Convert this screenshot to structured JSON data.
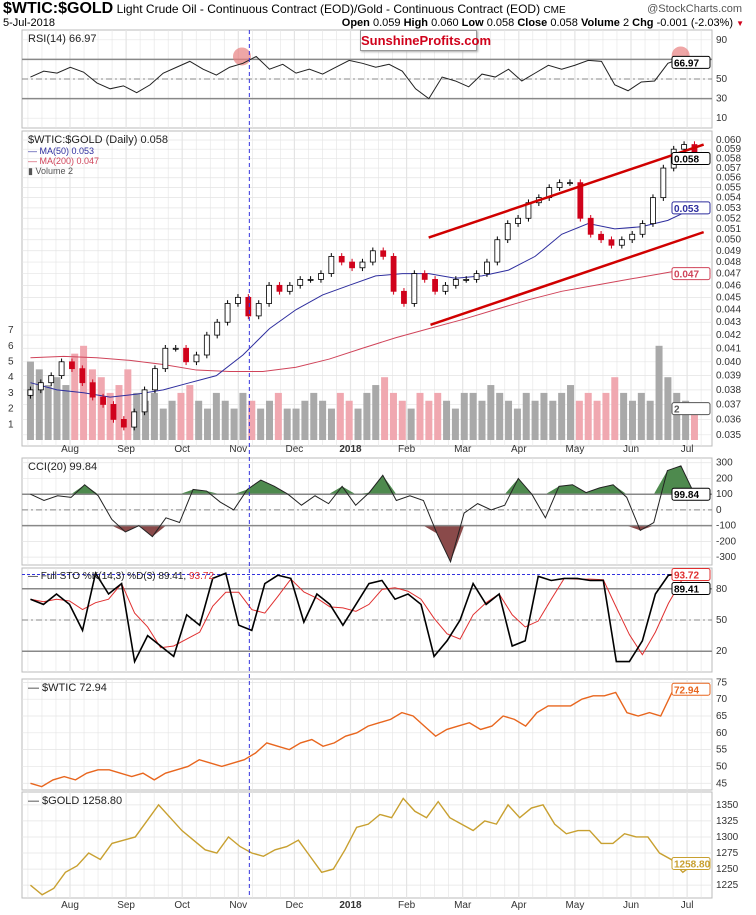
{
  "header": {
    "symbol": "$WTIC:$GOLD",
    "description": "Light Crude Oil - Continuous Contract (EOD)/Gold - Continuous Contract (EOD)",
    "exchange": "CME",
    "date": "5-Jul-2018",
    "brand": "@StockCharts.com",
    "quote": {
      "open_label": "Open",
      "open": "0.059",
      "high_label": "High",
      "high": "0.060",
      "low_label": "Low",
      "low": "0.058",
      "close_label": "Close",
      "close": "0.058",
      "volume_label": "Volume",
      "volume": "2",
      "chg_label": "Chg",
      "chg": "-0.001 (-2.03%)",
      "chg_icon": "down-triangle-icon"
    }
  },
  "watermark": "SunshineProfits.com",
  "colors": {
    "up": "#000000",
    "down": "#d0021b",
    "ma50": "#2e2e9e",
    "ma200": "#d0445a",
    "channel": "#d00000",
    "vol_up": "#a9a9a9",
    "vol_down": "#f0a8b0",
    "wtic": "#e8661e",
    "gold": "#c8a030",
    "grid": "#e4e4e4",
    "marker": "#3333dd",
    "cci_pos": "#4e8a4e",
    "cci_neg": "#8a4a4a",
    "highlight": "#e88080"
  },
  "chart_data": [
    {
      "id": "rsi",
      "type": "line",
      "title": "RSI(14) 66.97",
      "last": "66.97",
      "ylim": [
        0,
        100
      ],
      "ticks": [
        90,
        50,
        30,
        10
      ],
      "levels": [
        70,
        50,
        30
      ],
      "start_date": "2017-07-10",
      "end_date": "2018-07-05",
      "values": [
        52,
        58,
        56,
        62,
        57,
        46,
        40,
        43,
        36,
        44,
        56,
        62,
        68,
        60,
        54,
        62,
        66,
        73,
        60,
        65,
        56,
        60,
        55,
        62,
        69,
        66,
        62,
        65,
        58,
        40,
        30,
        52,
        48,
        42,
        55,
        52,
        60,
        48,
        56,
        64,
        60,
        64,
        69,
        68,
        44,
        38,
        47,
        48,
        66,
        71,
        66.97
      ],
      "annotations": [
        {
          "date": "2017-11-03",
          "value": 73
        },
        {
          "date": "2018-06-28",
          "value": 74
        }
      ]
    },
    {
      "id": "price",
      "type": "candlestick",
      "title": "$WTIC:$GOLD (Daily) 0.058",
      "scale": "log",
      "ylim": [
        0.035,
        0.061
      ],
      "ticks": [
        "0.035",
        "0.036",
        "0.037",
        "0.038",
        "0.039",
        "0.040",
        "0.041",
        "0.042",
        "0.043",
        "0.044",
        "0.045",
        "0.046",
        "0.047",
        "0.048",
        "0.049",
        "0.050",
        "0.051",
        "0.052",
        "0.053",
        "0.054",
        "0.055",
        "0.056",
        "0.057",
        "0.058",
        "0.059",
        "0.060"
      ],
      "last": "0.058",
      "start_date": "2017-07-10",
      "end_date": "2018-07-05",
      "close": [
        0.038,
        0.0385,
        0.039,
        0.04,
        0.0395,
        0.0385,
        0.0375,
        0.037,
        0.036,
        0.0355,
        0.0365,
        0.038,
        0.0395,
        0.041,
        0.041,
        0.04,
        0.0405,
        0.042,
        0.043,
        0.0445,
        0.045,
        0.0435,
        0.0445,
        0.046,
        0.0455,
        0.046,
        0.0465,
        0.0465,
        0.047,
        0.0485,
        0.048,
        0.0475,
        0.048,
        0.049,
        0.0485,
        0.0455,
        0.0445,
        0.047,
        0.0465,
        0.0455,
        0.046,
        0.0465,
        0.0465,
        0.047,
        0.048,
        0.05,
        0.0515,
        0.052,
        0.0535,
        0.054,
        0.055,
        0.0555,
        0.0555,
        0.052,
        0.0505,
        0.05,
        0.0495,
        0.05,
        0.0505,
        0.0515,
        0.054,
        0.057,
        0.059,
        0.0595,
        0.058
      ],
      "ma50": {
        "label": "MA(50) 0.053",
        "last": "0.053",
        "values": [
          0.0385,
          0.038,
          0.0378,
          0.0375,
          0.0377,
          0.038,
          0.0385,
          0.039,
          0.0405,
          0.0425,
          0.044,
          0.0452,
          0.046,
          0.0468,
          0.047,
          0.047,
          0.0466,
          0.0468,
          0.0473,
          0.0485,
          0.0505,
          0.0515,
          0.051,
          0.0512,
          0.0518,
          0.053
        ]
      },
      "ma200": {
        "label": "MA(200) 0.047",
        "last": "0.047",
        "values": [
          0.0403,
          0.0404,
          0.0403,
          0.0401,
          0.0398,
          0.0394,
          0.0393,
          0.0393,
          0.0396,
          0.0402,
          0.041,
          0.0418,
          0.0425,
          0.0432,
          0.044,
          0.0448,
          0.0455,
          0.046,
          0.0465,
          0.047,
          0.0475
        ]
      },
      "channel": [
        {
          "from": {
            "date": "2018-02-13",
            "value": 0.0502
          },
          "to": {
            "date": "2018-07-10",
            "value": 0.0595
          }
        },
        {
          "from": {
            "date": "2018-02-14",
            "value": 0.0428
          },
          "to": {
            "date": "2018-07-10",
            "value": 0.0507
          }
        }
      ],
      "volume": {
        "label": "Volume 2",
        "last": "2",
        "ticks": [
          "1",
          "2",
          "3",
          "4",
          "5",
          "6",
          "7"
        ],
        "ylim": [
          0,
          8
        ],
        "values": [
          5,
          4.5,
          3.5,
          4,
          3.5,
          5.5,
          6,
          4.5,
          4,
          3,
          3.5,
          4.5,
          3,
          2.5,
          3,
          2,
          2.5,
          3,
          3.5,
          2.5,
          2,
          3,
          2.5,
          2,
          3,
          2.5,
          2,
          2.5,
          3,
          2,
          2,
          2.5,
          3,
          2.5,
          2,
          3,
          2.5,
          2,
          3,
          3.5,
          4,
          3,
          2.5,
          2,
          3,
          2.5,
          3,
          2.5,
          2,
          3,
          3,
          2.5,
          3.5,
          3,
          2.5,
          2,
          3,
          2.5,
          3,
          2.5,
          3,
          3.5,
          2.5,
          3,
          2.5,
          3,
          4,
          3,
          2.5,
          3,
          2.5,
          6,
          4,
          3,
          2.5,
          2
        ]
      }
    },
    {
      "id": "cci",
      "type": "area",
      "title": "CCI(20) 99.84",
      "last": "99.84",
      "ylim": [
        -350,
        330
      ],
      "ticks": [
        "300",
        "200",
        "100",
        "0",
        "-100",
        "-200",
        "-300"
      ],
      "levels": [
        100,
        0,
        -100
      ],
      "start_date": "2017-07-10",
      "end_date": "2018-07-05",
      "values": [
        100,
        60,
        90,
        80,
        160,
        90,
        -60,
        -140,
        -100,
        -170,
        -50,
        -80,
        130,
        120,
        50,
        0,
        130,
        190,
        150,
        100,
        30,
        90,
        40,
        150,
        30,
        110,
        220,
        60,
        90,
        60,
        -150,
        -330,
        -20,
        40,
        0,
        30,
        200,
        100,
        -50,
        150,
        160,
        110,
        140,
        160,
        80,
        -130,
        -80,
        250,
        280,
        99.84
      ]
    },
    {
      "id": "sto",
      "type": "line",
      "title_prefix": "Full STO %K(14,3) %D(3)",
      "k_last": "89.41",
      "d_last": "93.72",
      "ylim": [
        0,
        100
      ],
      "ticks": [
        "80",
        "50",
        "20"
      ],
      "levels": [
        80,
        50,
        20
      ],
      "start_date": "2017-07-10",
      "end_date": "2018-07-05",
      "k": [
        70,
        65,
        75,
        65,
        40,
        95,
        75,
        85,
        10,
        35,
        25,
        15,
        55,
        45,
        90,
        95,
        45,
        40,
        85,
        93,
        90,
        48,
        75,
        65,
        45,
        65,
        85,
        88,
        70,
        75,
        65,
        15,
        30,
        50,
        85,
        65,
        75,
        25,
        30,
        92,
        88,
        90,
        90,
        88,
        88,
        10,
        10,
        30,
        75,
        93,
        95,
        89.41
      ]
    },
    {
      "id": "wtic",
      "type": "line",
      "title": "$WTIC 72.94",
      "last": "72.94",
      "ylim": [
        43,
        76
      ],
      "ticks": [
        "75",
        "70",
        "65",
        "60",
        "55",
        "50",
        "45"
      ],
      "start_date": "2017-07-10",
      "end_date": "2018-07-05",
      "values": [
        45,
        44,
        46,
        47,
        46,
        48,
        49,
        49,
        48,
        47,
        48,
        46,
        48,
        49,
        50,
        52,
        51,
        50,
        51,
        52,
        54,
        57,
        56,
        55,
        57,
        58,
        56,
        57,
        59,
        60,
        62,
        63,
        64,
        66,
        65,
        62,
        59,
        61,
        62,
        63,
        61,
        62,
        65,
        64,
        62,
        66,
        68,
        68,
        68,
        70,
        71,
        71,
        72,
        66,
        65,
        66,
        65,
        72,
        74,
        72.94
      ]
    },
    {
      "id": "gold",
      "type": "line",
      "title": "$GOLD 1258.80",
      "last": "1258.80",
      "ylim": [
        1205,
        1370
      ],
      "ticks": [
        "1350",
        "1325",
        "1300",
        "1275",
        "1250",
        "1225"
      ],
      "start_date": "2017-07-10",
      "end_date": "2018-07-05",
      "values": [
        1225,
        1210,
        1220,
        1245,
        1255,
        1275,
        1265,
        1290,
        1295,
        1300,
        1325,
        1350,
        1330,
        1310,
        1295,
        1280,
        1275,
        1300,
        1285,
        1275,
        1270,
        1280,
        1285,
        1295,
        1270,
        1245,
        1250,
        1280,
        1315,
        1320,
        1335,
        1330,
        1360,
        1340,
        1330,
        1355,
        1330,
        1320,
        1310,
        1325,
        1320,
        1350,
        1330,
        1345,
        1350,
        1320,
        1305,
        1310,
        1310,
        1290,
        1290,
        1305,
        1300,
        1300,
        1275,
        1265,
        1245,
        1258.8
      ]
    }
  ],
  "x_axis": {
    "labels": [
      {
        "text": "Aug",
        "date": "2017-08-01"
      },
      {
        "text": "Sep",
        "date": "2017-09-01"
      },
      {
        "text": "Oct",
        "date": "2017-10-01"
      },
      {
        "text": "Nov",
        "date": "2017-11-01"
      },
      {
        "text": "Dec",
        "date": "2017-12-01"
      },
      {
        "text": "2018",
        "date": "2018-01-01",
        "bold": true
      },
      {
        "text": "Feb",
        "date": "2018-02-01"
      },
      {
        "text": "Mar",
        "date": "2018-03-01"
      },
      {
        "text": "Apr",
        "date": "2018-04-01"
      },
      {
        "text": "May",
        "date": "2018-05-01"
      },
      {
        "text": "Jun",
        "date": "2018-06-01"
      },
      {
        "text": "Jul",
        "date": "2018-07-01"
      }
    ],
    "marker_date": "2017-11-07"
  }
}
